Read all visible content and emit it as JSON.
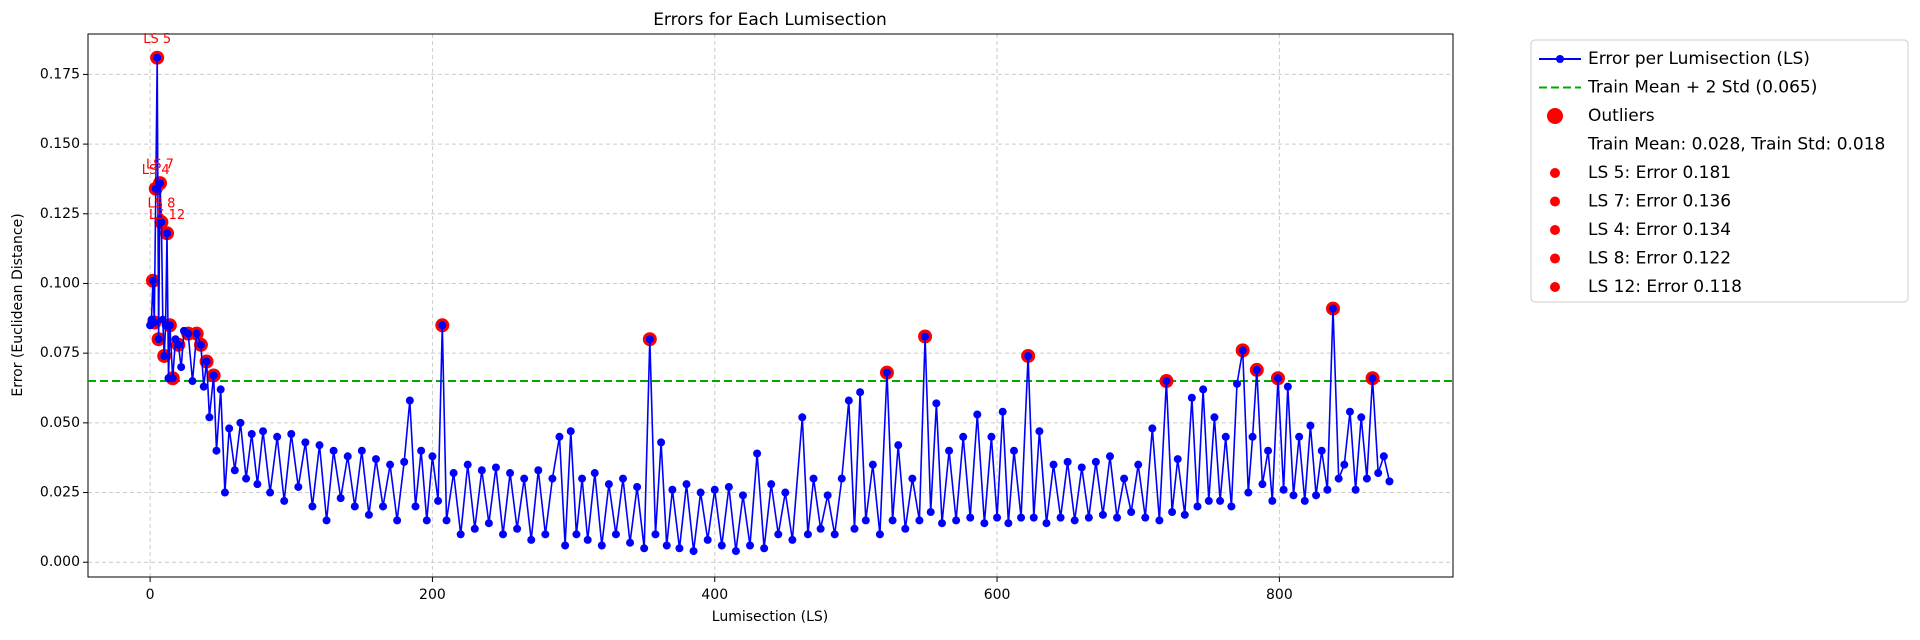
{
  "chart_data": {
    "type": "line",
    "title": "Errors for Each Lumisection",
    "xlabel": "Lumisection (LS)",
    "ylabel": "Error (Euclidean Distance)",
    "xlim": [
      -44,
      923
    ],
    "ylim": [
      -0.0053,
      0.1895
    ],
    "xticks": [
      0,
      200,
      400,
      600,
      800
    ],
    "yticks": [
      {
        "value": 0,
        "label": "0.000"
      },
      0.025,
      {
        "value": 0.05,
        "label": "0.050"
      },
      0.075,
      {
        "value": 0.1,
        "label": "0.100"
      },
      0.125,
      {
        "value": 0.15,
        "label": "0.150"
      },
      0.175
    ],
    "grid": true,
    "legend": "outside right",
    "series": [
      {
        "name": "Error per Lumisection (LS)",
        "color": "#0000ff",
        "x": [
          0,
          1,
          2,
          3,
          4,
          5,
          6,
          7,
          8,
          9,
          10,
          11,
          12,
          13,
          14,
          16,
          18,
          20,
          22,
          24,
          27,
          30,
          33,
          36,
          38,
          40,
          42,
          45,
          47,
          50,
          53,
          56,
          60,
          64,
          68,
          72,
          76,
          80,
          85,
          90,
          95,
          100,
          105,
          110,
          115,
          120,
          125,
          130,
          135,
          140,
          145,
          150,
          155,
          160,
          165,
          170,
          175,
          180,
          184,
          188,
          192,
          196,
          200,
          204,
          207,
          210,
          215,
          220,
          225,
          230,
          235,
          240,
          245,
          250,
          255,
          260,
          265,
          270,
          275,
          280,
          285,
          290,
          294,
          298,
          302,
          306,
          310,
          315,
          320,
          325,
          330,
          335,
          340,
          345,
          350,
          354,
          358,
          362,
          366,
          370,
          375,
          380,
          385,
          390,
          395,
          400,
          405,
          410,
          415,
          420,
          425,
          430,
          435,
          440,
          445,
          450,
          455,
          462,
          466,
          470,
          475,
          480,
          485,
          490,
          495,
          499,
          503,
          507,
          512,
          517,
          522,
          526,
          530,
          535,
          540,
          545,
          549,
          553,
          557,
          561,
          566,
          571,
          576,
          581,
          586,
          591,
          596,
          600,
          604,
          608,
          612,
          617,
          622,
          626,
          630,
          635,
          640,
          645,
          650,
          655,
          660,
          665,
          670,
          675,
          680,
          685,
          690,
          695,
          700,
          705,
          710,
          715,
          720,
          724,
          728,
          733,
          738,
          742,
          746,
          750,
          754,
          758,
          762,
          766,
          770,
          774,
          778,
          781,
          784,
          788,
          792,
          795,
          799,
          803,
          806,
          810,
          814,
          818,
          822,
          826,
          830,
          834,
          838,
          842,
          846,
          850,
          854,
          858,
          862,
          866,
          870,
          874,
          878
        ],
        "values": [
          0.085,
          0.087,
          0.101,
          0.086,
          0.134,
          0.181,
          0.08,
          0.136,
          0.122,
          0.087,
          0.074,
          0.085,
          0.118,
          0.066,
          0.085,
          0.066,
          0.08,
          0.078,
          0.07,
          0.083,
          0.082,
          0.065,
          0.082,
          0.078,
          0.063,
          0.072,
          0.052,
          0.067,
          0.04,
          0.062,
          0.025,
          0.048,
          0.033,
          0.05,
          0.03,
          0.046,
          0.028,
          0.047,
          0.025,
          0.045,
          0.022,
          0.046,
          0.027,
          0.043,
          0.02,
          0.042,
          0.015,
          0.04,
          0.023,
          0.038,
          0.02,
          0.04,
          0.017,
          0.037,
          0.02,
          0.035,
          0.015,
          0.036,
          0.058,
          0.02,
          0.04,
          0.015,
          0.038,
          0.022,
          0.085,
          0.015,
          0.032,
          0.01,
          0.035,
          0.012,
          0.033,
          0.014,
          0.034,
          0.01,
          0.032,
          0.012,
          0.03,
          0.008,
          0.033,
          0.01,
          0.03,
          0.045,
          0.006,
          0.047,
          0.01,
          0.03,
          0.008,
          0.032,
          0.006,
          0.028,
          0.01,
          0.03,
          0.007,
          0.027,
          0.005,
          0.08,
          0.01,
          0.043,
          0.006,
          0.026,
          0.005,
          0.028,
          0.004,
          0.025,
          0.008,
          0.026,
          0.006,
          0.027,
          0.004,
          0.024,
          0.006,
          0.039,
          0.005,
          0.028,
          0.01,
          0.025,
          0.008,
          0.052,
          0.01,
          0.03,
          0.012,
          0.024,
          0.01,
          0.03,
          0.058,
          0.012,
          0.061,
          0.015,
          0.035,
          0.01,
          0.068,
          0.015,
          0.042,
          0.012,
          0.03,
          0.015,
          0.081,
          0.018,
          0.057,
          0.014,
          0.04,
          0.015,
          0.045,
          0.016,
          0.053,
          0.014,
          0.045,
          0.016,
          0.054,
          0.014,
          0.04,
          0.016,
          0.074,
          0.016,
          0.047,
          0.014,
          0.035,
          0.016,
          0.036,
          0.015,
          0.034,
          0.016,
          0.036,
          0.017,
          0.038,
          0.016,
          0.03,
          0.018,
          0.035,
          0.016,
          0.048,
          0.015,
          0.065,
          0.018,
          0.037,
          0.017,
          0.059,
          0.02,
          0.062,
          0.022,
          0.052,
          0.022,
          0.045,
          0.02,
          0.064,
          0.076,
          0.025,
          0.045,
          0.069,
          0.028,
          0.04,
          0.022,
          0.066,
          0.026,
          0.063,
          0.024,
          0.045,
          0.022,
          0.049,
          0.024,
          0.04,
          0.026,
          0.091,
          0.03,
          0.035,
          0.054,
          0.026,
          0.052,
          0.03,
          0.066,
          0.032,
          0.038,
          0.029
        ]
      },
      {
        "name": "Outliers",
        "color": "#ff0000",
        "x": [
          2,
          3,
          4,
          5,
          6,
          7,
          8,
          10,
          12,
          14,
          16,
          20,
          27,
          33,
          36,
          40,
          45,
          207,
          354,
          522,
          549,
          622,
          720,
          774,
          784,
          799,
          838,
          866
        ],
        "values": [
          0.101,
          0.086,
          0.134,
          0.181,
          0.08,
          0.136,
          0.122,
          0.074,
          0.118,
          0.085,
          0.066,
          0.078,
          0.082,
          0.082,
          0.078,
          0.072,
          0.067,
          0.085,
          0.08,
          0.068,
          0.081,
          0.074,
          0.065,
          0.076,
          0.069,
          0.066,
          0.091,
          0.066
        ]
      }
    ],
    "threshold": {
      "name": "Train Mean + 2 Std (0.065)",
      "value": 0.065,
      "color": "#00aa00"
    },
    "legend_texts": [
      "Train Mean: 0.028, Train Std: 0.018",
      "LS 5: Error 0.181",
      "LS 7: Error 0.136",
      "LS 4: Error 0.134",
      "LS 8: Error 0.122",
      "LS 12: Error 0.118"
    ],
    "annotations": [
      {
        "text": "LS 5",
        "x": 5,
        "y": 0.181
      },
      {
        "text": "LS 7",
        "x": 7,
        "y": 0.136
      },
      {
        "text": "LS 4",
        "x": 4,
        "y": 0.134
      },
      {
        "text": "LS 8",
        "x": 8,
        "y": 0.122
      },
      {
        "text": "LS 12",
        "x": 12,
        "y": 0.118
      }
    ]
  }
}
